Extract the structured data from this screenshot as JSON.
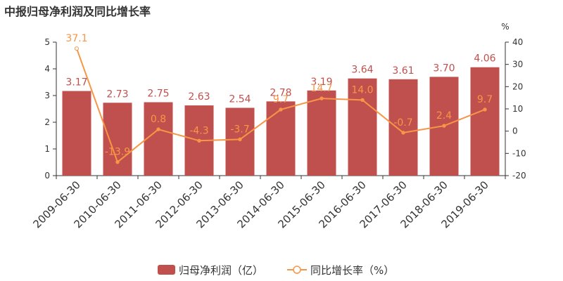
{
  "chart_data": {
    "type": "bar",
    "title": "中报归母净利润及同比增长率",
    "categories": [
      "2009-06-30",
      "2010-06-30",
      "2011-06-30",
      "2012-06-30",
      "2013-06-30",
      "2014-06-30",
      "2015-06-30",
      "2016-06-30",
      "2017-06-30",
      "2018-06-30",
      "2019-06-30"
    ],
    "series": [
      {
        "name": "归母净利润（亿）",
        "type": "bar",
        "axis": "left",
        "values": [
          3.17,
          2.73,
          2.75,
          2.63,
          2.54,
          2.78,
          3.19,
          3.64,
          3.61,
          3.7,
          4.06
        ],
        "labels": [
          "3.17",
          "2.73",
          "2.75",
          "2.63",
          "2.54",
          "2.78",
          "3.19",
          "3.64",
          "3.61",
          "3.70",
          "4.06"
        ]
      },
      {
        "name": "同比增长率（%）",
        "type": "line",
        "axis": "right",
        "values": [
          37.1,
          -13.9,
          0.8,
          -4.3,
          -3.7,
          9.7,
          14.7,
          14.0,
          -0.7,
          2.4,
          9.7
        ],
        "labels": [
          "37.1",
          "-13.9",
          "0.8",
          "-4.3",
          "-3.7",
          "9.7",
          "14.7",
          "14.0",
          "-0.7",
          "2.4",
          "9.7"
        ]
      }
    ],
    "y_left": {
      "min": 0,
      "max": 5,
      "ticks": [
        "0",
        "1",
        "2",
        "3",
        "4",
        "5"
      ]
    },
    "y_right": {
      "min": -20,
      "max": 40,
      "ticks": [
        "-20",
        "-10",
        "0",
        "10",
        "20",
        "30",
        "40"
      ],
      "unit": "%"
    },
    "legend_position": "bottom-center",
    "grid": false,
    "colors": {
      "bar": "#c0504d",
      "line": "#f79646",
      "axis": "#333333"
    }
  }
}
